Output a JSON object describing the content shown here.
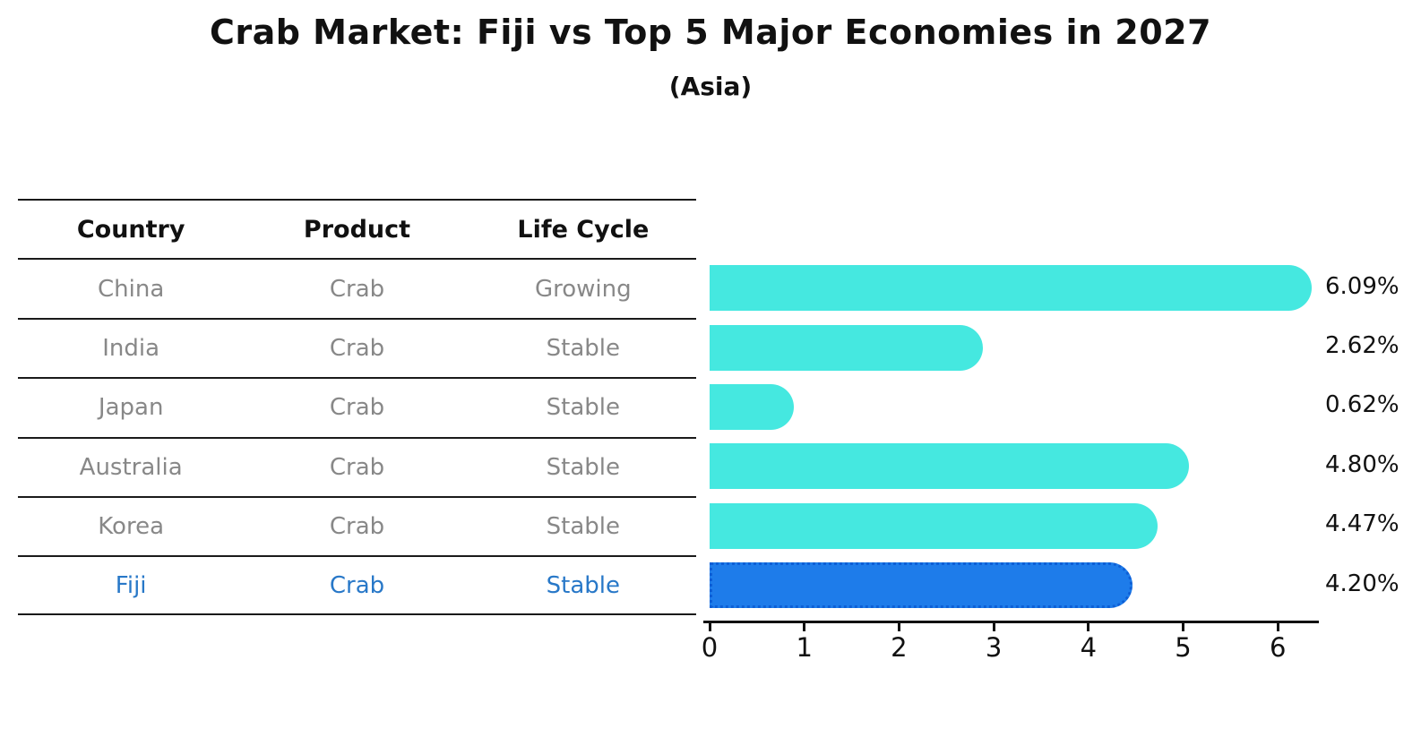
{
  "chart_data": {
    "type": "bar",
    "orientation": "horizontal",
    "title": "Crab Market: Fiji vs Top 5 Major Economies in 2027",
    "subtitle": "(Asia)",
    "xlabel": "",
    "ylabel": "",
    "xlim": [
      0,
      6.4
    ],
    "x_ticks": [
      0,
      1,
      2,
      3,
      4,
      5,
      6
    ],
    "grid": false,
    "legend": "none",
    "categories": [
      "China",
      "India",
      "Japan",
      "Australia",
      "Korea",
      "Fiji"
    ],
    "values": [
      6.09,
      2.62,
      0.62,
      4.8,
      4.47,
      4.2
    ],
    "value_labels": [
      "6.09%",
      "2.62%",
      "0.62%",
      "4.80%",
      "4.47%",
      "4.20%"
    ],
    "highlight_index": 5,
    "colors": {
      "bar": "#45E8E0",
      "highlight_bar": "#1E7CEA",
      "highlight_border": "#0D5FD6",
      "axis": "#111111",
      "value_label_text": "#111111"
    }
  },
  "table": {
    "headers": [
      "Country",
      "Product",
      "Life Cycle"
    ],
    "rows": [
      {
        "country": "China",
        "product": "Crab",
        "life_cycle": "Growing",
        "highlight": false
      },
      {
        "country": "India",
        "product": "Crab",
        "life_cycle": "Stable",
        "highlight": false
      },
      {
        "country": "Japan",
        "product": "Crab",
        "life_cycle": "Stable",
        "highlight": false
      },
      {
        "country": "Australia",
        "product": "Crab",
        "life_cycle": "Stable",
        "highlight": false
      },
      {
        "country": "Korea",
        "product": "Crab",
        "life_cycle": "Stable",
        "highlight": false
      },
      {
        "country": "Fiji",
        "product": "Crab",
        "life_cycle": "Stable",
        "highlight": true
      }
    ],
    "colors": {
      "header_text": "#111111",
      "row_text": "#888888",
      "highlight_row_text": "#2878C8",
      "rule": "#1a1a1a"
    }
  }
}
